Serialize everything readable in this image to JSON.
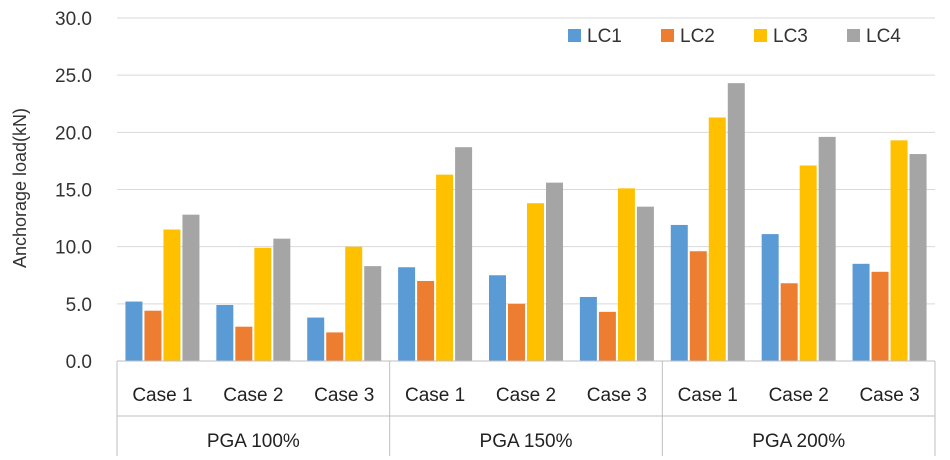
{
  "chart_data": {
    "type": "bar",
    "ylabel": "Anchorage load(kN)",
    "ylim": [
      0,
      30
    ],
    "yticks": [
      "0.0",
      "5.0",
      "10.0",
      "15.0",
      "20.0",
      "25.0",
      "30.0"
    ],
    "grid": "horizontal",
    "legend_position": "top-right",
    "groups": [
      {
        "label": "PGA 100%",
        "categories": [
          "Case 1",
          "Case 2",
          "Case 3"
        ]
      },
      {
        "label": "PGA 150%",
        "categories": [
          "Case 1",
          "Case 2",
          "Case 3"
        ]
      },
      {
        "label": "PGA 200%",
        "categories": [
          "Case 1",
          "Case 2",
          "Case 3"
        ]
      }
    ],
    "series": [
      {
        "name": "LC1",
        "color": "#5B9BD5",
        "values": [
          5.2,
          4.9,
          3.8,
          8.2,
          7.5,
          5.6,
          11.9,
          11.1,
          8.5
        ]
      },
      {
        "name": "LC2",
        "color": "#ED7D31",
        "values": [
          4.4,
          3.0,
          2.5,
          7.0,
          5.0,
          4.3,
          9.6,
          6.8,
          7.8
        ]
      },
      {
        "name": "LC3",
        "color": "#FFC000",
        "values": [
          11.5,
          9.9,
          10.0,
          16.3,
          13.8,
          15.1,
          21.3,
          17.1,
          19.3
        ]
      },
      {
        "name": "LC4",
        "color": "#A5A5A5",
        "values": [
          12.8,
          10.7,
          8.3,
          18.7,
          15.6,
          13.5,
          24.3,
          19.6,
          18.1
        ]
      }
    ]
  }
}
